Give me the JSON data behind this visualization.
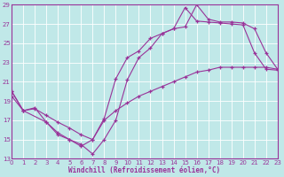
{
  "bg_color": "#c0e8e8",
  "grid_color": "#ffffff",
  "line_color": "#993399",
  "xlim": [
    0,
    23
  ],
  "ylim": [
    13,
    29
  ],
  "xticks": [
    0,
    1,
    2,
    3,
    4,
    5,
    6,
    7,
    8,
    9,
    10,
    11,
    12,
    13,
    14,
    15,
    16,
    17,
    18,
    19,
    20,
    21,
    22,
    23
  ],
  "yticks": [
    13,
    15,
    17,
    19,
    21,
    23,
    25,
    27,
    29
  ],
  "xlabel": "Windchill (Refroidissement éolien,°C)",
  "s1_x": [
    0,
    1,
    3,
    4,
    5,
    6,
    7,
    8,
    9,
    10,
    11,
    12,
    13,
    14,
    15,
    16,
    17,
    18,
    19,
    20,
    21,
    22,
    23
  ],
  "s1_y": [
    20,
    18,
    16.8,
    15.5,
    15.0,
    14.5,
    13.5,
    15.0,
    17.0,
    21.2,
    23.5,
    24.5,
    26.0,
    26.5,
    26.7,
    29.0,
    27.5,
    27.2,
    27.2,
    27.1,
    26.5,
    24.0,
    22.3
  ],
  "s2_x": [
    0,
    1,
    2,
    3,
    4,
    5,
    6,
    7,
    8,
    9,
    10,
    11,
    12,
    13,
    14,
    15,
    16,
    17,
    18,
    19,
    20,
    21,
    22,
    23
  ],
  "s2_y": [
    20,
    18,
    18.3,
    16.8,
    15.7,
    15.0,
    14.3,
    15.0,
    17.2,
    21.3,
    23.5,
    24.2,
    25.5,
    26.0,
    26.5,
    28.7,
    27.3,
    27.2,
    27.1,
    27.0,
    26.9,
    24.0,
    22.3,
    22.2
  ],
  "s3_x": [
    0,
    1,
    2,
    3,
    4,
    5,
    6,
    7,
    8,
    9,
    10,
    11,
    12,
    13,
    14,
    15,
    16,
    17,
    18,
    19,
    20,
    21,
    22,
    23
  ],
  "s3_y": [
    19.5,
    18.0,
    18.2,
    17.5,
    16.8,
    16.2,
    15.5,
    15.0,
    17.0,
    18.0,
    18.8,
    19.5,
    20.0,
    20.5,
    21.0,
    21.5,
    22.0,
    22.2,
    22.5,
    22.5,
    22.5,
    22.5,
    22.5,
    22.3
  ]
}
